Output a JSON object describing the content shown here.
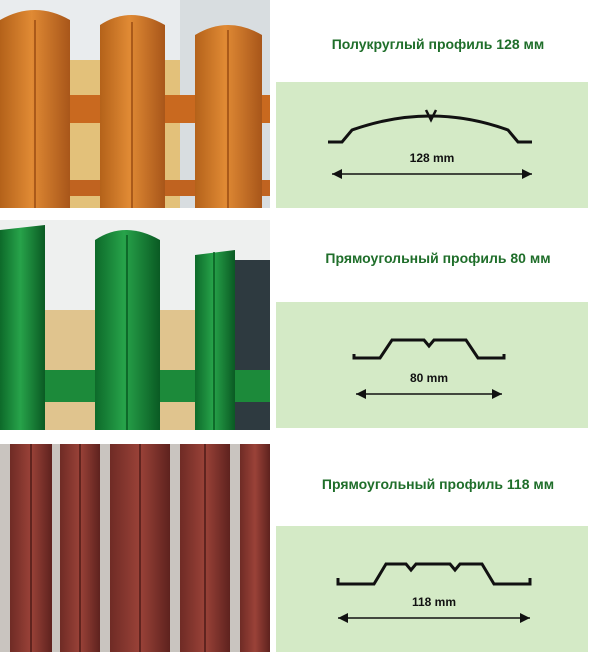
{
  "sections": [
    {
      "photo_name": "orange-fence-photo",
      "photo_color": "#c8731f",
      "title": "Полукруглый профиль 128 мм",
      "dimension_label": "128 mm",
      "profile_shape": "semicircular"
    },
    {
      "photo_name": "green-fence-photo",
      "photo_color": "#1e8a3c",
      "title": "Прямоугольный профиль 80 мм",
      "dimension_label": "80 mm",
      "profile_shape": "rectangular"
    },
    {
      "photo_name": "brown-fence-photo",
      "photo_color": "#8a3a32",
      "title": "Прямоугольный профиль 118 мм",
      "dimension_label": "118 mm",
      "profile_shape": "rectangular"
    }
  ]
}
